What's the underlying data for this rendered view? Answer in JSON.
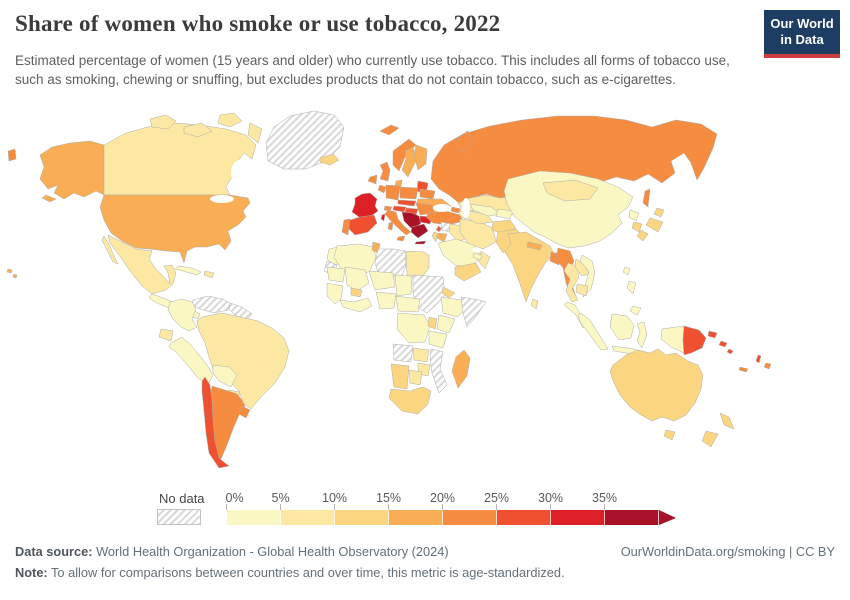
{
  "header": {
    "title": "Share of women who smoke or use tobacco, 2022",
    "subtitle": "Estimated percentage of women (15 years and older) who currently use tobacco. This includes all forms of tobacco use, such as smoking, chewing or snuffing, but excludes products that do not contain tobacco, such as e-cigarettes.",
    "logo": {
      "line1": "Our World",
      "line2": "in Data",
      "bg_color": "#1d3d63",
      "stripe_color": "#cf3b41"
    }
  },
  "legend": {
    "no_data_label": "No data",
    "tick_labels": [
      "0%",
      "5%",
      "10%",
      "15%",
      "20%",
      "25%",
      "30%",
      "35%"
    ]
  },
  "footer": {
    "datasource_label": "Data source:",
    "datasource_text": " World Health Organization - Global Health Observatory (2024)",
    "note_label": "Note:",
    "note_text": " To allow for comparisons between countries and over time, this metric is age-standardized.",
    "link_text": "OurWorldinData.org/smoking | CC BY"
  },
  "chart_data": {
    "type": "choropleth_map",
    "title": "Share of women who smoke or use tobacco",
    "year": 2022,
    "unit": "%",
    "no_data": {
      "label": "No data",
      "pattern": "gray-diagonal-hatch"
    },
    "bins": [
      {
        "label": "0-5%",
        "color": "#fbf7c3"
      },
      {
        "label": "5-10%",
        "color": "#fce8a2"
      },
      {
        "label": "10-15%",
        "color": "#fcd581"
      },
      {
        "label": "15-20%",
        "color": "#f9ad54"
      },
      {
        "label": "20-25%",
        "color": "#f68c40"
      },
      {
        "label": "25-30%",
        "color": "#ef5030"
      },
      {
        "label": "30-35%",
        "color": "#dd2026"
      },
      {
        "label": "35%+",
        "color": "#a81228"
      }
    ],
    "regions": {
      "greenland": "no-data",
      "western-sahara": "no-data",
      "libya": "no-data",
      "sudan": "no-data",
      "somalia": "no-data",
      "angola": "no-data",
      "mozambique": "no-data",
      "venezuela": "no-data",
      "guyanas": "no-data",
      "syria": "no-data",
      "china": 1,
      "morocco": 1,
      "algeria": 1,
      "mauritania": 1,
      "mali": 1,
      "niger": 1,
      "chad": 1,
      "senegal-guinea": 1,
      "west-africa-coast": 1,
      "nigeria": 1,
      "cameroon-car": 1,
      "drc": 1,
      "ethiopia": 1,
      "kenya": 1,
      "tanzania": 1,
      "colombia": 1,
      "peru": 1,
      "bolivia": 1,
      "central-america": 1,
      "cuba": 1,
      "saudi-arabia": 1,
      "uae-qatar": 1,
      "uzbekistan": 1,
      "kyrgyzstan-tajikistan": 1,
      "azerbaijan": 1,
      "vietnam": 1,
      "malaysia": 1,
      "indonesia": 1,
      "taiwan": 1,
      "north-korea": 1,
      "philippines": 1,
      "canada": 2,
      "mexico": 2,
      "brazil": 2,
      "paraguay": 2,
      "ecuador": 2,
      "hispaniola": 2,
      "egypt": 2,
      "zambia": 2,
      "zimbabwe": 2,
      "botswana": 2,
      "kazakhstan": 2,
      "mongolia": 2,
      "iran": 2,
      "iraq": 2,
      "turkmenistan": 2,
      "oman": 2,
      "thailand": 2,
      "laos": 2,
      "cambodia": 2,
      "sri-lanka": 2,
      "india": 3,
      "pakistan": 3,
      "afghanistan": 3,
      "yemen": 3,
      "eritrea": 3,
      "burkina-faso": 3,
      "uganda-rwanda": 3,
      "namibia": 3,
      "south-africa": 3,
      "japan": 3,
      "south-korea": 3,
      "australia": 3,
      "new-zealand": 3,
      "iceland": 3,
      "israel": 3,
      "usa": 4,
      "ukraine": 4,
      "nepal": 4,
      "jordan": 4,
      "tunisia": 4,
      "madagascar": 4,
      "sweden": 4,
      "finland": 4,
      "denmark": 4,
      "russia": 5,
      "norway": 5,
      "uk": 5,
      "ireland": 5,
      "germany": 5,
      "benelux": 5,
      "poland": 5,
      "belarus": 5,
      "romania": 5,
      "italy": 5,
      "portugal": 5,
      "switzerland": 5,
      "turkey": 5,
      "georgia": 5,
      "myanmar": 5,
      "bangladesh": 5,
      "argentina": 5,
      "uruguay": 5,
      "fiji": 5,
      "new-caledonia": 5,
      "czechia-slovakia": 6,
      "austria": 6,
      "hungary": 6,
      "baltic-states": 6,
      "spain": 6,
      "chile": 6,
      "papua-new-guinea": 6,
      "solomon-islands": 6,
      "vanuatu": 6,
      "lebanon": 6,
      "cyprus": 6,
      "armenia": 6,
      "france": 7,
      "bulgaria": 7,
      "balkans": 8,
      "greece": 8
    }
  }
}
